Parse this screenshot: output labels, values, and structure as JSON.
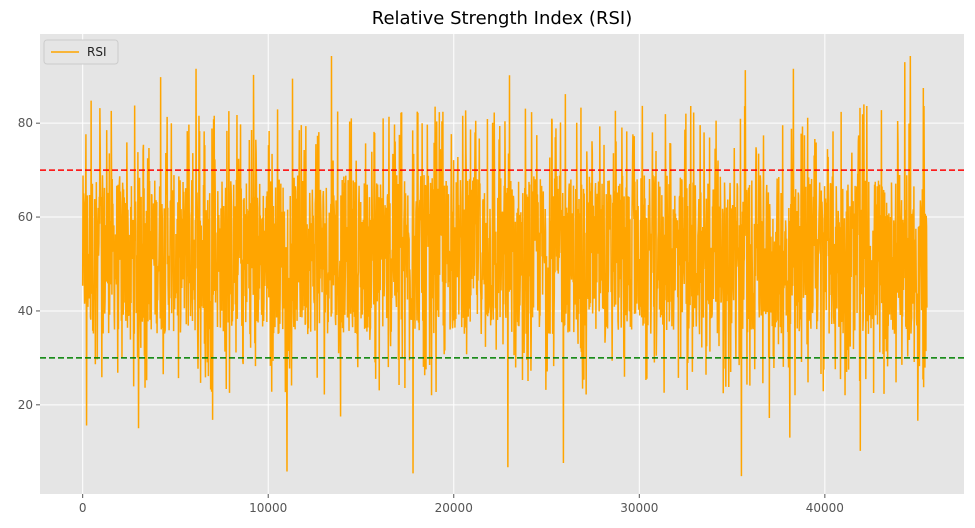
{
  "chart_data": {
    "type": "line",
    "title": "Relative Strength Index (RSI)",
    "xlabel": "",
    "ylabel": "",
    "xlim": [
      -2300,
      47500
    ],
    "ylim": [
      1,
      99
    ],
    "x_ticks": [
      0,
      10000,
      20000,
      30000,
      40000
    ],
    "x_tick_labels": [
      "0",
      "10000",
      "20000",
      "30000",
      "40000"
    ],
    "y_ticks": [
      20,
      40,
      60,
      80
    ],
    "y_tick_labels": [
      "20",
      "40",
      "60",
      "80"
    ],
    "grid": true,
    "legend": {
      "placement": "top-left",
      "entries": [
        "RSI"
      ]
    },
    "n_points": 45500,
    "series": [
      {
        "name": "RSI",
        "color": "#ffa500",
        "style": "solid",
        "summary": {
          "typical_range": [
            35,
            70
          ],
          "min": 4.8,
          "max": 94.3
        },
        "extremes": [
          {
            "x": 200,
            "y": 15.6
          },
          {
            "x": 450,
            "y": 84.8
          },
          {
            "x": 3000,
            "y": 15.0
          },
          {
            "x": 4200,
            "y": 89.8
          },
          {
            "x": 6100,
            "y": 91.6
          },
          {
            "x": 7000,
            "y": 16.8
          },
          {
            "x": 9200,
            "y": 90.3
          },
          {
            "x": 11000,
            "y": 5.8
          },
          {
            "x": 11300,
            "y": 89.5
          },
          {
            "x": 13400,
            "y": 94.4
          },
          {
            "x": 13900,
            "y": 17.5
          },
          {
            "x": 17800,
            "y": 5.4
          },
          {
            "x": 22900,
            "y": 6.7
          },
          {
            "x": 23000,
            "y": 90.2
          },
          {
            "x": 25900,
            "y": 7.6
          },
          {
            "x": 26000,
            "y": 86.2
          },
          {
            "x": 35500,
            "y": 4.8
          },
          {
            "x": 35700,
            "y": 91.3
          },
          {
            "x": 37000,
            "y": 17.2
          },
          {
            "x": 38100,
            "y": 13.0
          },
          {
            "x": 38300,
            "y": 91.6
          },
          {
            "x": 41900,
            "y": 10.2
          },
          {
            "x": 42100,
            "y": 84.0
          },
          {
            "x": 44300,
            "y": 93.0
          },
          {
            "x": 44600,
            "y": 94.3
          },
          {
            "x": 45000,
            "y": 16.6
          },
          {
            "x": 45300,
            "y": 87.5
          }
        ]
      }
    ],
    "reference_lines": [
      {
        "y": 70,
        "color": "#ff0000",
        "style": "dashed"
      },
      {
        "y": 30,
        "color": "#008000",
        "style": "dashed"
      }
    ]
  }
}
